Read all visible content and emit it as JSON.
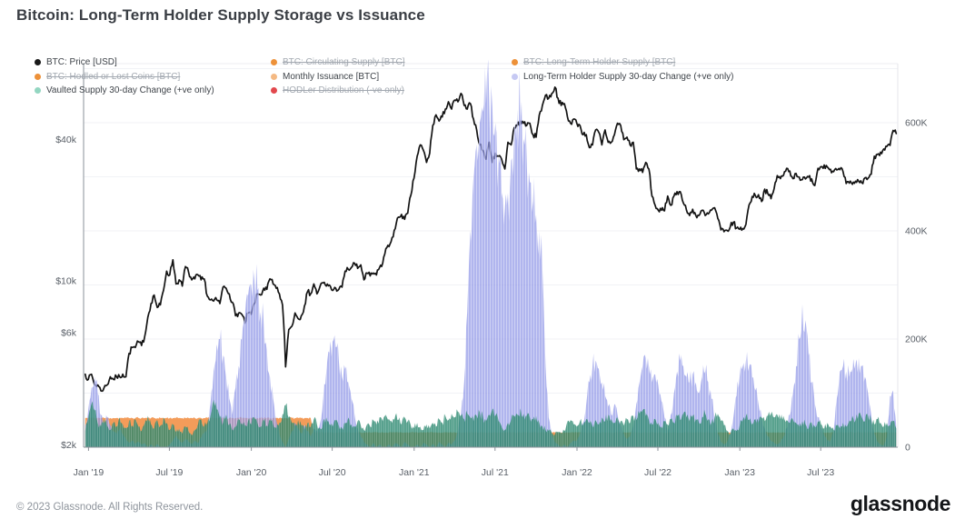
{
  "header": {
    "title": "Bitcoin: Long-Term Holder Supply Storage vs Issuance"
  },
  "legend": {
    "items": [
      {
        "label": "BTC: Price [USD]",
        "color": "#1a1a1a",
        "struck": false,
        "col": 0
      },
      {
        "label": "BTC: Hodled or Lost Coins [BTC]",
        "color": "#ed9139",
        "struck": true,
        "col": 0
      },
      {
        "label": "Vaulted Supply 30-day Change (+ve only)",
        "color": "#93d6c1",
        "struck": false,
        "col": 0
      },
      {
        "label": "BTC: Circulating Supply [BTC]",
        "color": "#ed9139",
        "struck": true,
        "col": 1
      },
      {
        "label": "Monthly Issuance [BTC]",
        "color": "#f4b983",
        "struck": false,
        "col": 1
      },
      {
        "label": "HODLer Distribution (-ve only)",
        "color": "#e2484d",
        "struck": true,
        "col": 1
      },
      {
        "label": "BTC: Long-Term Holder Supply [BTC]",
        "color": "#ed9139",
        "struck": true,
        "col": 2
      },
      {
        "label": "Long-Term Holder Supply 30-day Change (+ve only)",
        "color": "#c6c9f3",
        "struck": false,
        "col": 2
      }
    ]
  },
  "footer": {
    "copyright": "© 2023 Glassnode. All Rights Reserved.",
    "brand": "glassnode"
  },
  "chart_data": {
    "type": "area",
    "title": "Bitcoin: Long-Term Holder Supply Storage vs Issuance",
    "x_axis": {
      "start_t": 2018.98,
      "step_t": 0.0192308,
      "n": 260,
      "ticks": [
        {
          "t": 2019.0,
          "label": "Jan '19"
        },
        {
          "t": 2019.497,
          "label": "Jul '19"
        },
        {
          "t": 2020.0,
          "label": "Jan '20"
        },
        {
          "t": 2020.497,
          "label": "Jul '20"
        },
        {
          "t": 2021.0,
          "label": "Jan '21"
        },
        {
          "t": 2021.497,
          "label": "Jul '21"
        },
        {
          "t": 2022.0,
          "label": "Jan '22"
        },
        {
          "t": 2022.497,
          "label": "Jul '22"
        },
        {
          "t": 2023.0,
          "label": "Jan '23"
        },
        {
          "t": 2023.497,
          "label": "Jul '23"
        }
      ]
    },
    "y_left": {
      "scale": "log",
      "unit": "USD",
      "ticks": [
        {
          "label": "$40k",
          "value": 40
        },
        {
          "label": "$10k",
          "value": 10
        },
        {
          "label": "$6k",
          "value": 6
        },
        {
          "label": "$2k",
          "value": 2
        }
      ]
    },
    "y_right": {
      "scale": "linear",
      "unit": "BTC",
      "max": 600,
      "ticks": [
        {
          "label": "600K",
          "value": 600
        },
        {
          "label": "400K",
          "value": 400
        },
        {
          "label": "200K",
          "value": 200
        },
        {
          "label": "0",
          "value": 0
        }
      ]
    },
    "series": [
      {
        "name": "BTC: Price [USD]",
        "type": "line",
        "axis": "left",
        "color": "#141414",
        "unit": "USD thousands",
        "values": [
          4.0,
          3.8,
          4.0,
          3.6,
          3.6,
          3.4,
          3.5,
          3.6,
          3.9,
          3.8,
          3.9,
          3.9,
          4.0,
          3.9,
          4.9,
          5.2,
          5.2,
          5.5,
          5.3,
          5.8,
          7.0,
          8.0,
          8.7,
          7.7,
          7.9,
          9.1,
          11.0,
          10.6,
          12.3,
          9.7,
          10.1,
          9.5,
          11.5,
          10.9,
          10.1,
          10.2,
          10.6,
          10.1,
          10.2,
          8.6,
          8.3,
          8.2,
          8.3,
          8.0,
          9.4,
          9.3,
          8.8,
          8.1,
          7.1,
          7.3,
          7.2,
          6.6,
          7.3,
          7.2,
          8.0,
          8.8,
          8.7,
          9.3,
          9.2,
          10.2,
          9.7,
          9.3,
          8.8,
          7.9,
          4.3,
          6.2,
          6.4,
          7.3,
          6.9,
          7.1,
          7.8,
          9.0,
          8.8,
          9.7,
          8.8,
          9.5,
          9.8,
          9.5,
          9.6,
          9.1,
          9.3,
          9.2,
          9.4,
          11.0,
          11.2,
          11.4,
          11.9,
          11.3,
          11.7,
          10.1,
          10.8,
          10.5,
          10.8,
          10.6,
          11.4,
          11.9,
          13.7,
          14.0,
          15.3,
          16.7,
          18.7,
          19.2,
          18.3,
          19.4,
          23.2,
          27.4,
          34,
          38,
          36,
          32,
          35,
          46,
          51,
          48,
          50,
          54,
          58,
          54,
          59,
          58,
          63,
          56,
          54,
          57,
          49,
          44,
          38,
          36,
          33,
          39,
          32,
          35,
          34,
          33,
          30,
          39,
          38,
          45,
          46,
          48,
          47,
          46,
          47,
          42,
          41,
          51,
          56,
          62,
          60,
          63,
          67,
          60,
          56,
          57,
          50,
          47,
          49,
          47,
          46,
          42,
          42,
          37,
          38,
          44,
          43,
          38,
          44,
          39,
          39,
          42,
          47,
          46,
          40,
          41,
          38,
          39,
          30,
          30,
          29,
          32,
          30,
          23,
          21,
          20,
          20,
          19.9,
          23,
          21,
          23,
          24,
          24,
          21.5,
          20,
          19,
          20.2,
          19,
          19,
          20,
          19,
          19.3,
          20,
          20.5,
          18.5,
          16.5,
          16.2,
          16.4,
          17,
          17.8,
          16.8,
          16.6,
          16.7,
          17.4,
          21.1,
          22.9,
          23.1,
          23.3,
          21.8,
          24.6,
          23.5,
          22.4,
          24.7,
          28.1,
          27.3,
          28.2,
          30.2,
          29.4,
          27.3,
          28.7,
          27.7,
          27.0,
          27.2,
          27.7,
          27.2,
          25.5,
          30.2,
          30.7,
          31.2,
          30.6,
          29.9,
          29.2,
          29.7,
          29.8,
          29.2,
          26.0,
          26.1,
          25.8,
          26.6,
          26.6,
          26.2,
          27.5,
          27.4,
          28.5,
          34.0,
          34.6,
          35.4,
          36.5,
          37.4,
          37.8,
          43.8,
          42.5
        ]
      },
      {
        "name": "Long-Term Holder Supply 30-day Change (+ve only)",
        "type": "area",
        "axis": "right",
        "color": "#9298e8",
        "unit": "BTC thousands",
        "values": [
          40,
          70,
          110,
          130,
          100,
          60,
          45,
          55,
          40,
          30,
          25,
          35,
          25,
          15,
          8,
          12,
          6,
          10,
          5,
          8,
          0,
          5,
          0,
          6,
          0,
          0,
          0,
          5,
          12,
          22,
          14,
          8,
          16,
          10,
          6,
          12,
          8,
          18,
          26,
          35,
          80,
          140,
          190,
          200,
          170,
          130,
          90,
          60,
          110,
          150,
          200,
          240,
          280,
          300,
          310,
          290,
          250,
          230,
          180,
          130,
          90,
          50,
          25,
          10,
          0,
          15,
          30,
          45,
          35,
          25,
          40,
          30,
          20,
          35,
          30,
          45,
          90,
          140,
          175,
          195,
          185,
          160,
          130,
          145,
          120,
          90,
          60,
          35,
          20,
          10,
          5,
          0,
          8,
          0,
          5,
          0,
          0,
          5,
          0,
          8,
          5,
          0,
          10,
          5,
          0,
          0,
          5,
          0,
          8,
          5,
          0,
          6,
          0,
          10,
          5,
          0,
          8,
          5,
          12,
          30,
          60,
          120,
          250,
          400,
          500,
          560,
          600,
          620,
          635,
          645,
          630,
          600,
          540,
          470,
          440,
          470,
          530,
          590,
          625,
          605,
          570,
          530,
          490,
          455,
          430,
          400,
          330,
          150,
          55,
          22,
          10,
          5,
          0,
          5,
          0,
          8,
          12,
          12,
          25,
          45,
          80,
          120,
          150,
          160,
          145,
          120,
          95,
          75,
          60,
          80,
          60,
          40,
          25,
          15,
          20,
          40,
          80,
          120,
          150,
          165,
          150,
          120,
          135,
          115,
          85,
          55,
          30,
          60,
          100,
          140,
          160,
          150,
          130,
          120,
          135,
          120,
          100,
          130,
          140,
          120,
          90,
          55,
          25,
          10,
          5,
          10,
          25,
          55,
          95,
          130,
          150,
          160,
          150,
          130,
          105,
          80,
          55,
          35,
          20,
          12,
          8,
          5,
          10,
          20,
          35,
          60,
          100,
          150,
          200,
          264,
          235,
          170,
          120,
          80,
          55,
          35,
          22,
          12,
          12,
          30,
          90,
          140,
          150,
          140,
          130,
          145,
          155,
          165,
          150,
          130,
          100,
          60,
          25,
          10,
          5,
          3,
          20,
          95,
          105,
          40
        ]
      },
      {
        "name": "Vaulted Supply 30-day Change (+ve only)",
        "type": "area",
        "axis": "right",
        "color": "#24846a",
        "unit": "BTC thousands",
        "values": [
          30,
          55,
          80,
          68,
          45,
          38,
          52,
          40,
          32,
          45,
          38,
          55,
          42,
          35,
          48,
          40,
          52,
          38,
          30,
          45,
          58,
          42,
          35,
          50,
          40,
          55,
          45,
          32,
          42,
          28,
          35,
          25,
          38,
          30,
          22,
          32,
          42,
          52,
          38,
          45,
          58,
          88,
          70,
          55,
          45,
          60,
          42,
          32,
          38,
          52,
          45,
          40,
          48,
          42,
          55,
          45,
          38,
          48,
          40,
          52,
          42,
          35,
          45,
          60,
          78,
          55,
          45,
          38,
          50,
          40,
          32,
          45,
          38,
          52,
          42,
          35,
          48,
          55,
          42,
          38,
          50,
          40,
          35,
          45,
          55,
          42,
          38,
          48,
          40,
          32,
          42,
          38,
          50,
          42,
          55,
          48,
          60,
          52,
          45,
          58,
          50,
          42,
          55,
          48,
          40,
          35,
          45,
          38,
          32,
          42,
          35,
          45,
          38,
          52,
          45,
          58,
          50,
          62,
          55,
          65,
          58,
          52,
          62,
          55,
          48,
          58,
          65,
          55,
          48,
          60,
          70,
          58,
          48,
          38,
          32,
          45,
          50,
          58,
          60,
          72,
          62,
          58,
          55,
          52,
          58,
          45,
          38,
          32,
          30,
          26,
          24,
          28,
          26,
          30,
          48,
          50,
          42,
          38,
          48,
          42,
          52,
          45,
          38,
          50,
          42,
          55,
          48,
          60,
          52,
          45,
          55,
          48,
          40,
          52,
          45,
          58,
          50,
          62,
          68,
          58,
          50,
          42,
          52,
          45,
          38,
          48,
          42,
          52,
          45,
          58,
          50,
          62,
          55,
          48,
          58,
          52,
          45,
          55,
          62,
          52,
          45,
          55,
          62,
          48,
          40,
          30,
          25,
          35,
          30,
          40,
          50,
          58,
          50,
          42,
          52,
          45,
          55,
          48,
          58,
          62,
          55,
          60,
          52,
          58,
          50,
          45,
          52,
          45,
          38,
          48,
          42,
          35,
          45,
          38,
          48,
          42,
          35,
          45,
          38,
          32,
          40,
          35,
          45,
          38,
          50,
          58,
          50,
          62,
          55,
          48,
          58,
          50,
          42,
          52,
          45,
          38,
          45,
          40,
          48,
          35
        ]
      },
      {
        "name": "Monthly Issuance [BTC]",
        "type": "area",
        "axis": "right",
        "color": "#f2954e",
        "unit": "BTC thousands",
        "pre_halving": 54,
        "post_halving": 27.4,
        "halving_t": 2020.37
      }
    ]
  }
}
